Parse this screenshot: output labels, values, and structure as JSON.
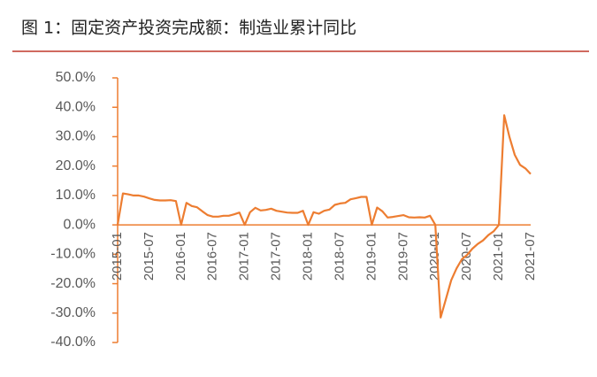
{
  "chart_data": {
    "type": "line",
    "title": "图 1：固定资产投资完成额：制造业累计同比",
    "categories": [
      "2015-01",
      null,
      null,
      null,
      null,
      null,
      "2015-07",
      null,
      null,
      null,
      null,
      null,
      "2016-01",
      null,
      null,
      null,
      null,
      null,
      "2016-07",
      null,
      null,
      null,
      null,
      null,
      "2017-01",
      null,
      null,
      null,
      null,
      null,
      "2017-07",
      null,
      null,
      null,
      null,
      null,
      "2018-01",
      null,
      null,
      null,
      null,
      null,
      "2018-07",
      null,
      null,
      null,
      null,
      null,
      "2019-01",
      null,
      null,
      null,
      null,
      null,
      "2019-07",
      null,
      null,
      null,
      null,
      null,
      "2020-01",
      null,
      null,
      null,
      null,
      null,
      "2020-07",
      null,
      null,
      null,
      null,
      null,
      "2021-01",
      null,
      null,
      null,
      null,
      null,
      "2021-07"
    ],
    "series": [
      {
        "color": "#ed7d31",
        "values": [
          0,
          10.7,
          10.4,
          10.0,
          10.0,
          9.6,
          9.0,
          8.5,
          8.3,
          8.3,
          8.4,
          8.1,
          0,
          7.5,
          6.4,
          6.0,
          4.6,
          3.3,
          2.8,
          2.8,
          3.1,
          3.1,
          3.6,
          4.2,
          0,
          4.3,
          5.8,
          4.9,
          5.1,
          5.5,
          4.8,
          4.5,
          4.2,
          4.1,
          4.1,
          4.8,
          0,
          4.3,
          3.8,
          4.8,
          5.2,
          6.8,
          7.3,
          7.5,
          8.7,
          9.1,
          9.5,
          9.5,
          0,
          5.9,
          4.6,
          2.5,
          2.7,
          3.0,
          3.3,
          2.6,
          2.5,
          2.6,
          2.5,
          3.1,
          0,
          -31.5,
          -25.2,
          -18.8,
          -14.8,
          -11.7,
          -10.2,
          -8.1,
          -6.5,
          -5.3,
          -3.5,
          -2.2,
          0,
          37.3,
          29.8,
          23.8,
          20.4,
          19.2,
          17.3
        ]
      }
    ],
    "ylim": [
      -40,
      50
    ],
    "yticks": [
      {
        "value": -40,
        "label": "-40.0%"
      },
      {
        "value": -30,
        "label": "-30.0%"
      },
      {
        "value": -20,
        "label": "-20.0%"
      },
      {
        "value": -10,
        "label": "-10.0%"
      },
      {
        "value": 0,
        "label": "0.0%"
      },
      {
        "value": 10,
        "label": "10.0%"
      },
      {
        "value": 20,
        "label": "20.0%"
      },
      {
        "value": 30,
        "label": "30.0%"
      },
      {
        "value": 40,
        "label": "40.0%"
      },
      {
        "value": 50,
        "label": "50.0%"
      }
    ],
    "axis_color": "#ed7d31"
  }
}
